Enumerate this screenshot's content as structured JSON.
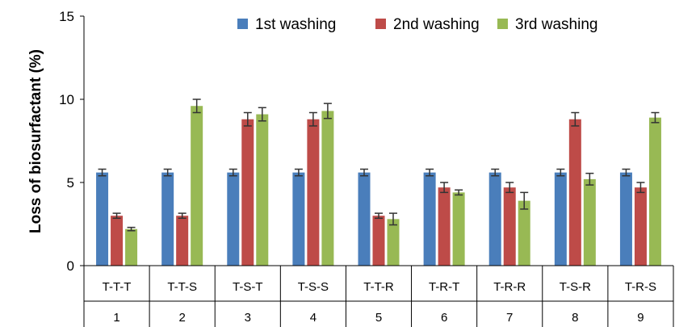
{
  "chart_data": {
    "type": "bar",
    "title": "",
    "xlabel": "",
    "ylabel": "Loss of biosurfactant (%)",
    "ylim": [
      0,
      15
    ],
    "yticks": [
      0,
      5,
      10,
      15
    ],
    "grid": false,
    "legend_position": "top",
    "categories": [
      "T-T-T",
      "T-T-S",
      "T-S-T",
      "T-S-S",
      "T-T-R",
      "T-R-T",
      "T-R-R",
      "T-S-R",
      "T-R-S"
    ],
    "category_numbers": [
      "1",
      "2",
      "3",
      "4",
      "5",
      "6",
      "7",
      "8",
      "9"
    ],
    "series": [
      {
        "name": "1st washing",
        "color": "#4a7ebb",
        "values": [
          5.6,
          5.6,
          5.6,
          5.6,
          5.6,
          5.6,
          5.6,
          5.6,
          5.6
        ],
        "errors": [
          0.2,
          0.2,
          0.2,
          0.2,
          0.2,
          0.2,
          0.2,
          0.2,
          0.2
        ]
      },
      {
        "name": "2nd washing",
        "color": "#be4b48",
        "values": [
          3.0,
          3.0,
          8.8,
          8.8,
          3.0,
          4.7,
          4.7,
          8.8,
          4.7
        ],
        "errors": [
          0.15,
          0.15,
          0.4,
          0.4,
          0.15,
          0.3,
          0.3,
          0.4,
          0.3
        ]
      },
      {
        "name": "3rd washing",
        "color": "#98b954",
        "values": [
          2.2,
          9.6,
          9.1,
          9.3,
          2.8,
          4.4,
          3.9,
          5.2,
          8.9
        ],
        "errors": [
          0.1,
          0.4,
          0.4,
          0.45,
          0.35,
          0.15,
          0.5,
          0.35,
          0.3
        ]
      }
    ]
  }
}
